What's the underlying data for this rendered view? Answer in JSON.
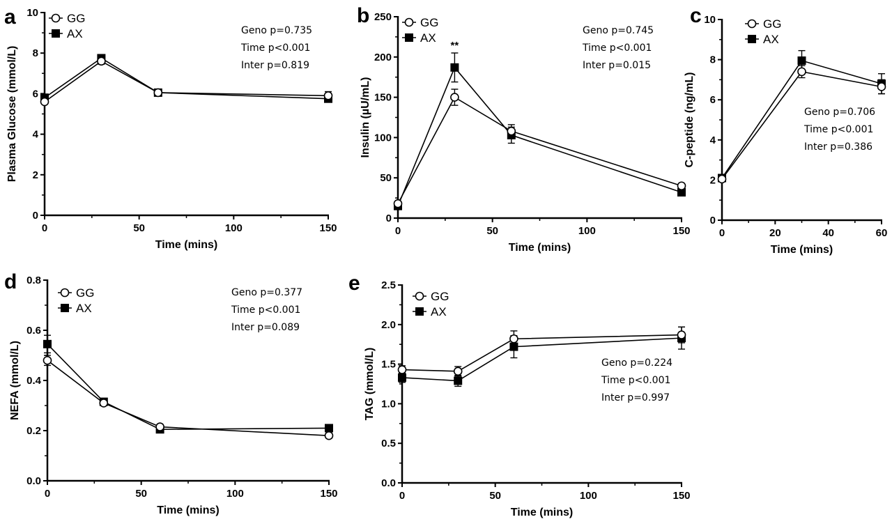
{
  "colors": {
    "ink": "#000000",
    "open_marker_fill": "#ffffff"
  },
  "chart_data": [
    {
      "type": "line",
      "panel_label": "a",
      "xlabel": "Time (mins)",
      "ylabel": "Plasma Glucose (mmol/L)",
      "xlim": [
        0,
        150
      ],
      "ylim": [
        0,
        10
      ],
      "xticks": [
        0,
        50,
        100,
        150
      ],
      "yticks": [
        0,
        2,
        4,
        6,
        8,
        10
      ],
      "x": [
        0,
        30,
        60,
        150
      ],
      "series": [
        {
          "name": "GG",
          "marker": "open-circle",
          "values": [
            5.6,
            7.6,
            6.05,
            5.9
          ],
          "errors": [
            0.1,
            0.15,
            0.1,
            0.2
          ]
        },
        {
          "name": "AX",
          "marker": "filled-square",
          "values": [
            5.8,
            7.75,
            6.05,
            5.75
          ],
          "errors": [
            0.1,
            0.15,
            0.1,
            0.1
          ]
        }
      ],
      "annotations": [],
      "stats": [
        "Geno p=0.735",
        "Time p<0.001",
        "Inter p=0.819"
      ],
      "legend_position": "top-left",
      "stats_position": "top-right",
      "grid": false
    },
    {
      "type": "line",
      "panel_label": "b",
      "xlabel": "Time (mins)",
      "ylabel": "Insulin (µU/mL)",
      "xlim": [
        0,
        150
      ],
      "ylim": [
        0,
        250
      ],
      "xticks": [
        0,
        50,
        100,
        150
      ],
      "yticks": [
        0,
        50,
        100,
        150,
        200,
        250
      ],
      "x": [
        0,
        30,
        60,
        150
      ],
      "series": [
        {
          "name": "GG",
          "marker": "open-circle",
          "values": [
            18,
            150,
            108,
            40
          ],
          "errors": [
            2,
            10,
            8,
            3
          ]
        },
        {
          "name": "AX",
          "marker": "filled-square",
          "values": [
            15,
            187,
            103,
            32
          ],
          "errors": [
            2,
            18,
            10,
            3
          ]
        }
      ],
      "annotations": [
        {
          "text": "**",
          "x": 30,
          "y": 210
        }
      ],
      "stats": [
        "Geno p=0.745",
        "Time p<0.001",
        "Inter p=0.015"
      ],
      "legend_position": "top-left",
      "stats_position": "top-right",
      "grid": false
    },
    {
      "type": "line",
      "panel_label": "c",
      "xlabel": "Time (mins)",
      "ylabel": "C-peptide (ng/mL)",
      "xlim": [
        0,
        60
      ],
      "ylim": [
        0,
        10
      ],
      "xticks": [
        0,
        20,
        40,
        60
      ],
      "yticks": [
        0,
        2,
        4,
        6,
        8,
        10
      ],
      "x": [
        0,
        30,
        60
      ],
      "series": [
        {
          "name": "GG",
          "marker": "open-circle",
          "values": [
            2.05,
            7.4,
            6.65
          ],
          "errors": [
            0.1,
            0.3,
            0.35
          ]
        },
        {
          "name": "AX",
          "marker": "filled-square",
          "values": [
            2.1,
            7.95,
            6.8
          ],
          "errors": [
            0.1,
            0.5,
            0.5
          ]
        }
      ],
      "annotations": [],
      "stats": [
        "Geno p=0.706",
        "Time p<0.001",
        "Inter p=0.386"
      ],
      "legend_position": "top-left",
      "stats_position": "right",
      "grid": false
    },
    {
      "type": "line",
      "panel_label": "d",
      "xlabel": "Time (mins)",
      "ylabel": "NEFA (mmol/L)",
      "xlim": [
        0,
        150
      ],
      "ylim": [
        0,
        0.8
      ],
      "xticks": [
        0,
        50,
        100,
        150
      ],
      "yticks": [
        0.0,
        0.2,
        0.4,
        0.6,
        0.8
      ],
      "ytick_labels": [
        "0.0",
        "0.2",
        "0.4",
        "0.6",
        "0.8"
      ],
      "x": [
        0,
        30,
        60,
        150
      ],
      "series": [
        {
          "name": "GG",
          "marker": "open-circle",
          "values": [
            0.48,
            0.31,
            0.215,
            0.18
          ],
          "errors": [
            0.02,
            0.01,
            0.01,
            0.01
          ]
        },
        {
          "name": "AX",
          "marker": "filled-square",
          "values": [
            0.545,
            0.315,
            0.205,
            0.21
          ],
          "errors": [
            0.035,
            0.01,
            0.01,
            0.01
          ]
        }
      ],
      "annotations": [],
      "stats": [
        "Geno p=0.377",
        "Time p<0.001",
        "Inter p=0.089"
      ],
      "legend_position": "top-left",
      "stats_position": "top-right",
      "grid": false
    },
    {
      "type": "line",
      "panel_label": "e",
      "xlabel": "Time (mins)",
      "ylabel": "TAG (mmol/L)",
      "xlim": [
        0,
        150
      ],
      "ylim": [
        0,
        2.5
      ],
      "xticks": [
        0,
        50,
        100,
        150
      ],
      "yticks": [
        0.0,
        0.5,
        1.0,
        1.5,
        2.0,
        2.5
      ],
      "ytick_labels": [
        "0.0",
        "0.5",
        "1.0",
        "1.5",
        "2.0",
        "2.5"
      ],
      "x": [
        0,
        30,
        60,
        150
      ],
      "series": [
        {
          "name": "GG",
          "marker": "open-circle",
          "values": [
            1.43,
            1.41,
            1.82,
            1.87
          ],
          "errors": [
            0.05,
            0.06,
            0.1,
            0.1
          ]
        },
        {
          "name": "AX",
          "marker": "filled-square",
          "values": [
            1.33,
            1.29,
            1.72,
            1.83
          ],
          "errors": [
            0.06,
            0.07,
            0.14,
            0.14
          ]
        }
      ],
      "annotations": [],
      "stats": [
        "Geno p=0.224",
        "Time p<0.001",
        "Inter p=0.997"
      ],
      "legend_position": "top-left",
      "stats_position": "right",
      "grid": false
    }
  ]
}
